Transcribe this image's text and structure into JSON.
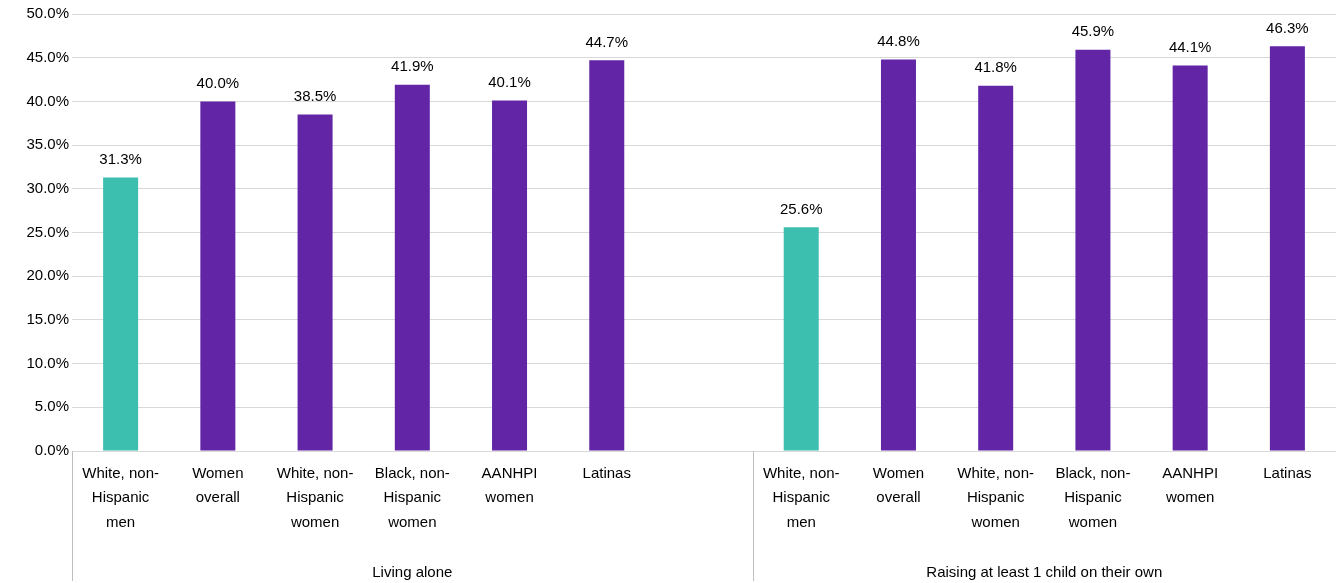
{
  "chart_data": {
    "type": "bar",
    "categories": [
      "White, non-Hispanic men",
      "Women overall",
      "White, non-Hispanic women",
      "Black, non-Hispanic women",
      "AANHPI women",
      "Latinas",
      null,
      "White, non-Hispanic men",
      "Women overall",
      "White, non-Hispanic women",
      "Black, non-Hispanic women",
      "AANHPI women",
      "Latinas"
    ],
    "values": [
      31.3,
      40.0,
      38.5,
      41.9,
      40.1,
      44.7,
      null,
      25.6,
      44.8,
      41.8,
      45.9,
      44.1,
      46.3
    ],
    "colors": [
      "#3dbfb0",
      "#6225a6",
      "#6225a6",
      "#6225a6",
      "#6225a6",
      "#6225a6",
      "#6225a6",
      "#3dbfb0",
      "#6225a6",
      "#6225a6",
      "#6225a6",
      "#6225a6",
      "#6225a6"
    ],
    "value_labels": [
      "31.3%",
      "40.0%",
      "38.5%",
      "41.9%",
      "40.1%",
      "44.7%",
      null,
      "25.6%",
      "44.8%",
      "41.8%",
      "45.9%",
      "44.1%",
      "46.3%"
    ],
    "ylim": [
      0,
      50
    ],
    "yticks": [
      {
        "value": 0,
        "label": "0.0%"
      },
      {
        "value": 5,
        "label": "5.0%"
      },
      {
        "value": 10,
        "label": "10.0%"
      },
      {
        "value": 15,
        "label": "15.0%"
      },
      {
        "value": 20,
        "label": "20.0%"
      },
      {
        "value": 25,
        "label": "25.0%"
      },
      {
        "value": 30,
        "label": "30.0%"
      },
      {
        "value": 35,
        "label": "35.0%"
      },
      {
        "value": 40,
        "label": "40.0%"
      },
      {
        "value": 45,
        "label": "45.0%"
      },
      {
        "value": 50,
        "label": "50.0%"
      }
    ],
    "grid": "y",
    "legend": false,
    "annotations": [
      "Living alone",
      "Raising at least 1 child on their own"
    ]
  }
}
